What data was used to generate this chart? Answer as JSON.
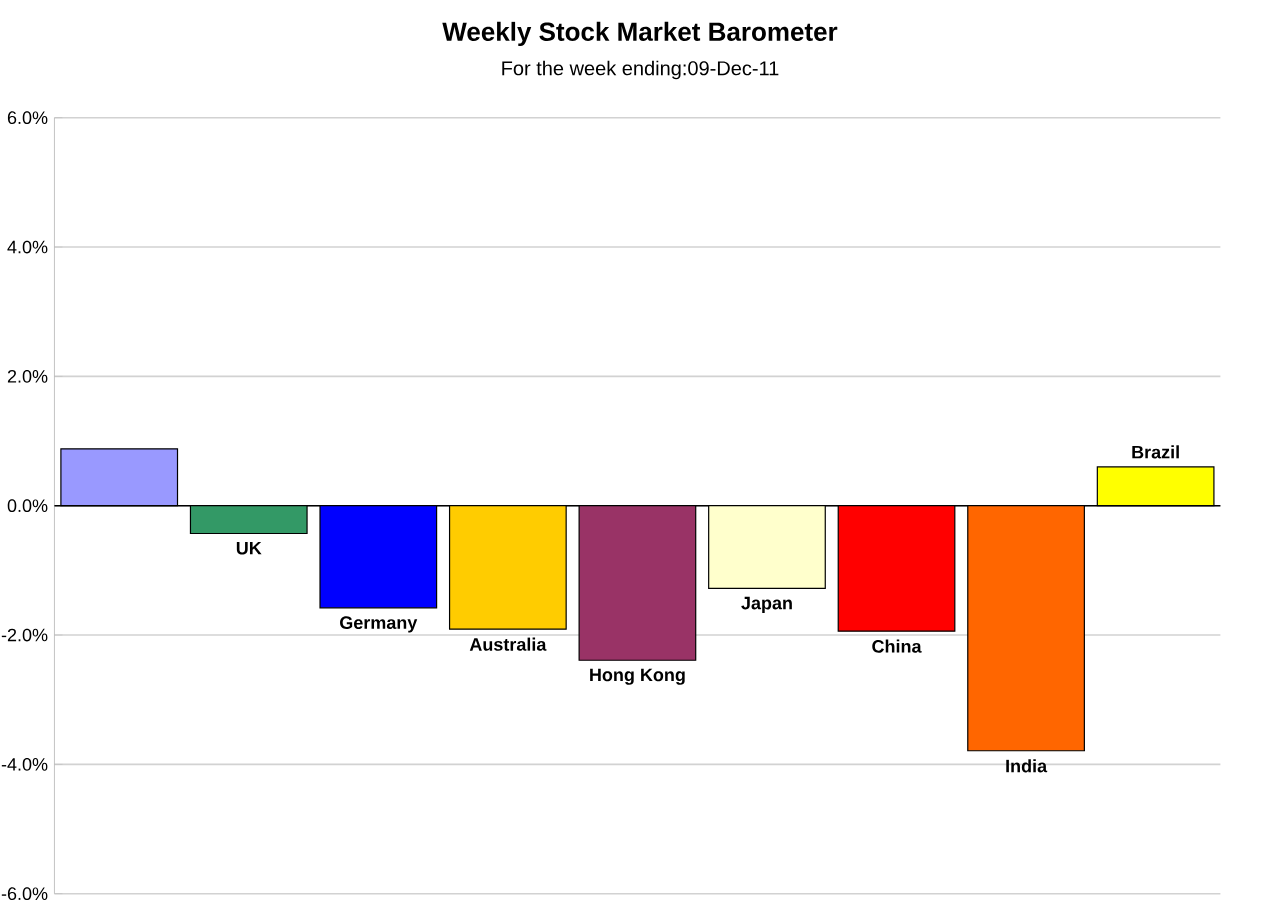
{
  "chart_data": {
    "type": "bar",
    "title": "Weekly Stock Market Barometer",
    "subtitle": "For the week ending:09-Dec-11",
    "categories": [
      null,
      "UK",
      "Germany",
      "Australia",
      "Hong Kong",
      "Japan",
      "China",
      "India",
      "Brazil"
    ],
    "values": [
      0.88,
      -0.43,
      -1.58,
      -1.91,
      -2.39,
      -1.28,
      -1.94,
      -3.79,
      0.6
    ],
    "colors": [
      "#9999ff",
      "#339966",
      "#0000ff",
      "#ffcc00",
      "#993366",
      "#ffffcc",
      "#ff0000",
      "#ff6600",
      "#ffff00"
    ],
    "ylim": [
      -6,
      6
    ],
    "yticks": [
      {
        "value": -6,
        "label": "-6.0%"
      },
      {
        "value": -4,
        "label": "-4.0%"
      },
      {
        "value": -2,
        "label": "-2.0%"
      },
      {
        "value": 0,
        "label": "0.0%"
      },
      {
        "value": 2,
        "label": "2.0%"
      },
      {
        "value": 4,
        "label": "4.0%"
      },
      {
        "value": 6,
        "label": "6.0%"
      }
    ],
    "grid": "y"
  }
}
